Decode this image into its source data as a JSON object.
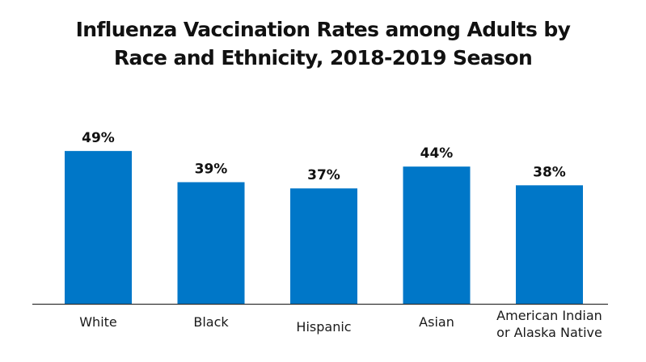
{
  "chart_data": {
    "type": "bar",
    "title_lines": [
      "Influenza Vaccination Rates among Adults by",
      "Race and Ethnicity, 2018-2019 Season"
    ],
    "categories": [
      [
        "White"
      ],
      [
        "Black"
      ],
      [
        "Hispanic"
      ],
      [
        "Asian"
      ],
      [
        "American Indian",
        "or Alaska Native"
      ]
    ],
    "values": [
      49,
      39,
      37,
      44,
      38
    ],
    "value_labels": [
      "49%",
      "39%",
      "37%",
      "44%",
      "38%"
    ],
    "xlabel": "",
    "ylabel": "",
    "ylim": [
      0,
      50
    ],
    "grid": false,
    "legend": "none",
    "bar_color": "#0077c8"
  }
}
